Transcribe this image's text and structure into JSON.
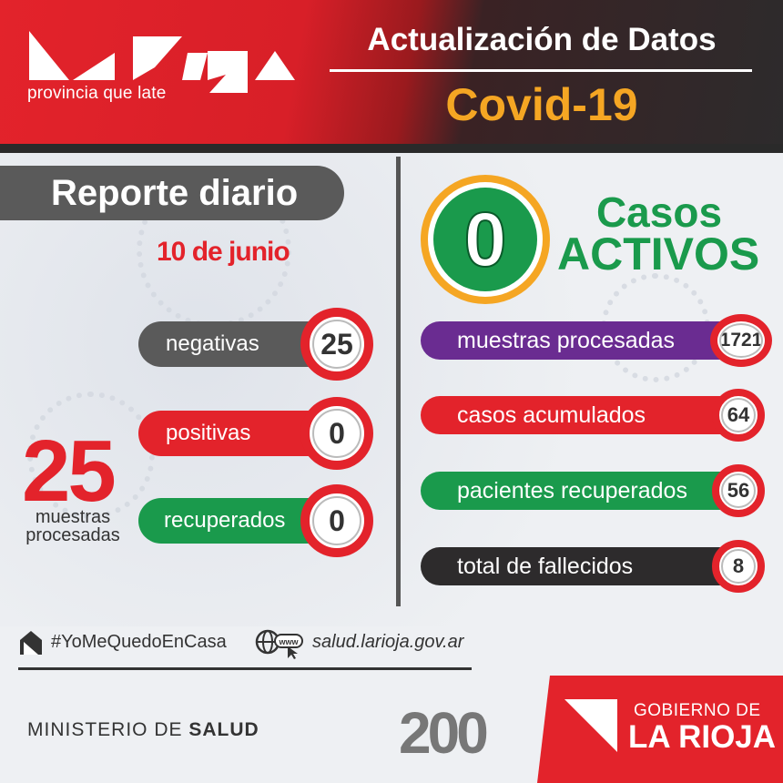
{
  "header": {
    "logo_tagline": "provincia que late",
    "title": "Actualización de Datos",
    "subtitle": "Covid-19"
  },
  "daily": {
    "title": "Reporte diario",
    "date": "10 de junio",
    "items": [
      {
        "label": "negativas",
        "value": "25",
        "color": "#5a5a5a"
      },
      {
        "label": "positivas",
        "value": "0",
        "color": "#e3232b"
      },
      {
        "label": "recuperados",
        "value": "0",
        "color": "#1a9a4c"
      }
    ],
    "total_value": "25",
    "total_label_1": "muestras",
    "total_label_2": "procesadas"
  },
  "active": {
    "value": "0",
    "label_1": "Casos",
    "label_2": "ACTIVOS"
  },
  "totals": [
    {
      "label": "muestras procesadas",
      "value": "1721",
      "color": "#6a2c91"
    },
    {
      "label": "casos acumulados",
      "value": "64",
      "color": "#e3232b"
    },
    {
      "label": "pacientes recuperados",
      "value": "56",
      "color": "#1a9a4c"
    },
    {
      "label": "total de fallecidos",
      "value": "8",
      "color": "#2d2b2c"
    }
  ],
  "footer": {
    "hashtag": "#YoMeQuedoEnCasa",
    "www_label": "www",
    "website": "salud.larioja.gov.ar",
    "ministry_1": "MINISTERIO DE ",
    "ministry_2": "SALUD",
    "anniversary": "200",
    "gov_1": "GOBIERNO DE",
    "gov_2": "LA RIOJA"
  },
  "colors": {
    "red": "#e3232b",
    "green": "#1a9a4c",
    "orange": "#f5a623",
    "purple": "#6a2c91",
    "dark": "#2d2b2c"
  }
}
